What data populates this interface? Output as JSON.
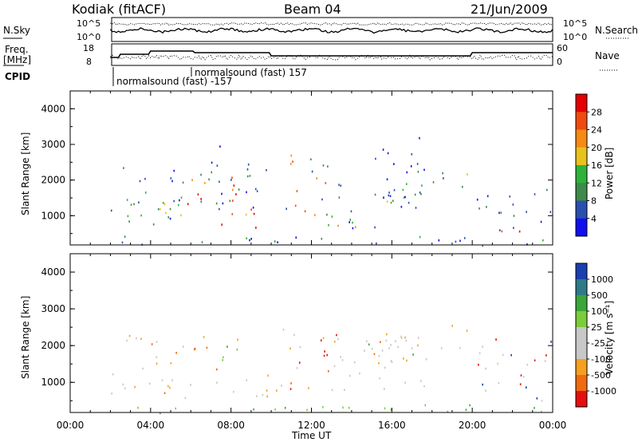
{
  "header": {
    "station": "Kodiak (fitACF)",
    "beam": "Beam 04",
    "date": "21/Jun/2009"
  },
  "noise_panel": {
    "left_label_1": "N.Sky",
    "left_label_2": "",
    "ticks": [
      "10^5",
      "10^0"
    ],
    "right_ticks": [
      "10^5",
      "10^0"
    ],
    "right_label": "N.Search"
  },
  "freq_panel": {
    "left_label_1": "Freq.",
    "left_label_2": "[MHz]",
    "ticks": [
      "18",
      "8"
    ],
    "right_ticks": [
      "60",
      "0"
    ],
    "right_label": "Nave"
  },
  "cpid": {
    "label": "CPID",
    "program_1": "normalsound (fast) -157",
    "program_2": "normalsound (fast) 157"
  },
  "chart_data": [
    {
      "type": "heatmap",
      "title": "",
      "xlabel": "Time UT",
      "ylabel": "Slant Range [km]",
      "xlim": [
        0,
        24
      ],
      "ylim": [
        180,
        4500
      ],
      "y_ticks": [
        "1000",
        "2000",
        "3000",
        "4000"
      ],
      "colorbar_label": "Power [dB]",
      "colorbar_ticks": [
        "4",
        "8",
        "12",
        "16",
        "20",
        "24",
        "28"
      ],
      "colors": [
        "#1010ee",
        "#2b4fae",
        "#3f8a4a",
        "#2fb23a",
        "#e8c21a",
        "#f58a14",
        "#f04a10",
        "#e40000"
      ]
    },
    {
      "type": "heatmap",
      "title": "",
      "xlabel": "Time UT",
      "ylabel": "Slant Range [km]",
      "xlim": [
        0,
        24
      ],
      "ylim": [
        180,
        4500
      ],
      "y_ticks": [
        "1000",
        "2000",
        "3000",
        "4000"
      ],
      "colorbar_label": "Velocity [m s⁻¹]",
      "colorbar_ticks": [
        "1000",
        "500",
        "100",
        "25",
        "-25",
        "-100",
        "-500",
        "-1000"
      ],
      "colors": [
        "#1a3fb0",
        "#2f7a88",
        "#3aa63a",
        "#7ccd3a",
        "#c8c8c8",
        "#c8c8c8",
        "#f5a020",
        "#f06a10",
        "#e41010"
      ]
    }
  ],
  "time_axis": {
    "label": "Time UT",
    "ticks": [
      "00:00",
      "04:00",
      "08:00",
      "12:00",
      "16:00",
      "20:00",
      "00:00"
    ]
  }
}
